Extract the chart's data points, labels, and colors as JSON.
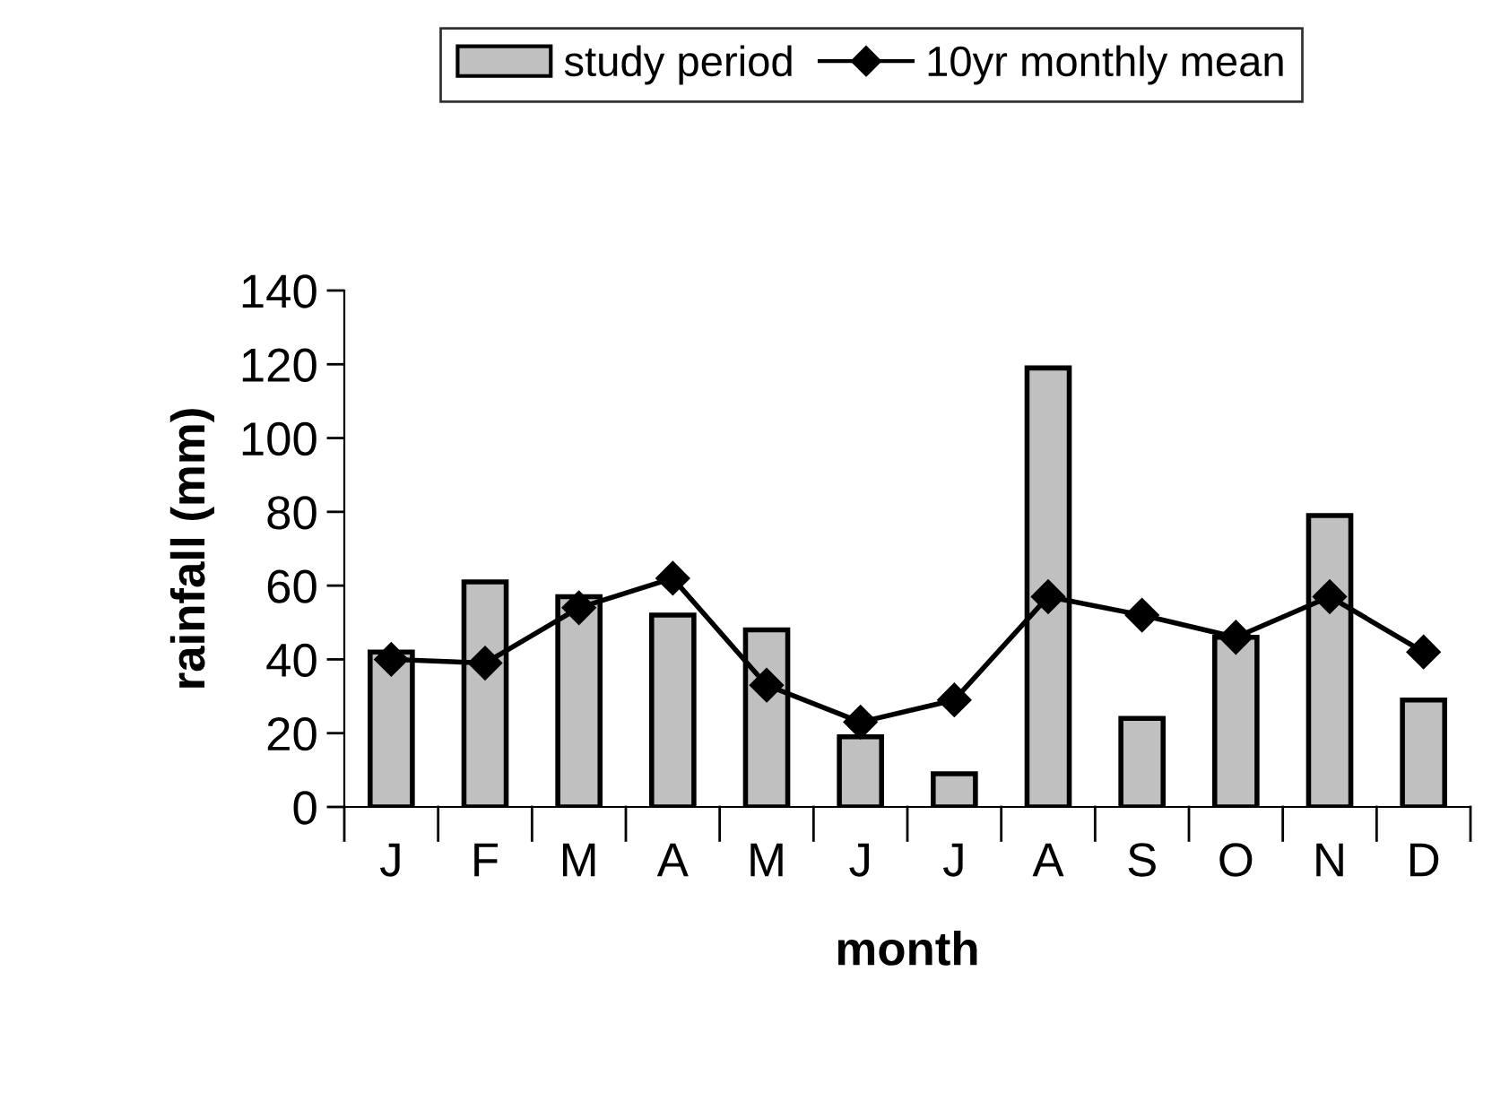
{
  "chart_data": {
    "type": "bar",
    "xlabel": "month",
    "ylabel": "rainfall (mm)",
    "categories": [
      "J",
      "F",
      "M",
      "A",
      "M",
      "J",
      "J",
      "A",
      "S",
      "O",
      "N",
      "D"
    ],
    "series": [
      {
        "name": "study period",
        "color": "#c0c0c0",
        "values": [
          42,
          61,
          57,
          52,
          48,
          19,
          9,
          119,
          24,
          46,
          79,
          29
        ]
      },
      {
        "name": "10yr monthly mean",
        "type": "line",
        "color": "#000000",
        "marker": "diamond",
        "values": [
          40,
          39,
          54,
          62,
          33,
          23,
          29,
          57,
          52,
          46,
          57,
          42
        ]
      }
    ],
    "ylim": [
      0,
      140
    ],
    "yticks": [
      0,
      20,
      40,
      60,
      80,
      100,
      120,
      140
    ],
    "grid": false,
    "legend": "top"
  }
}
